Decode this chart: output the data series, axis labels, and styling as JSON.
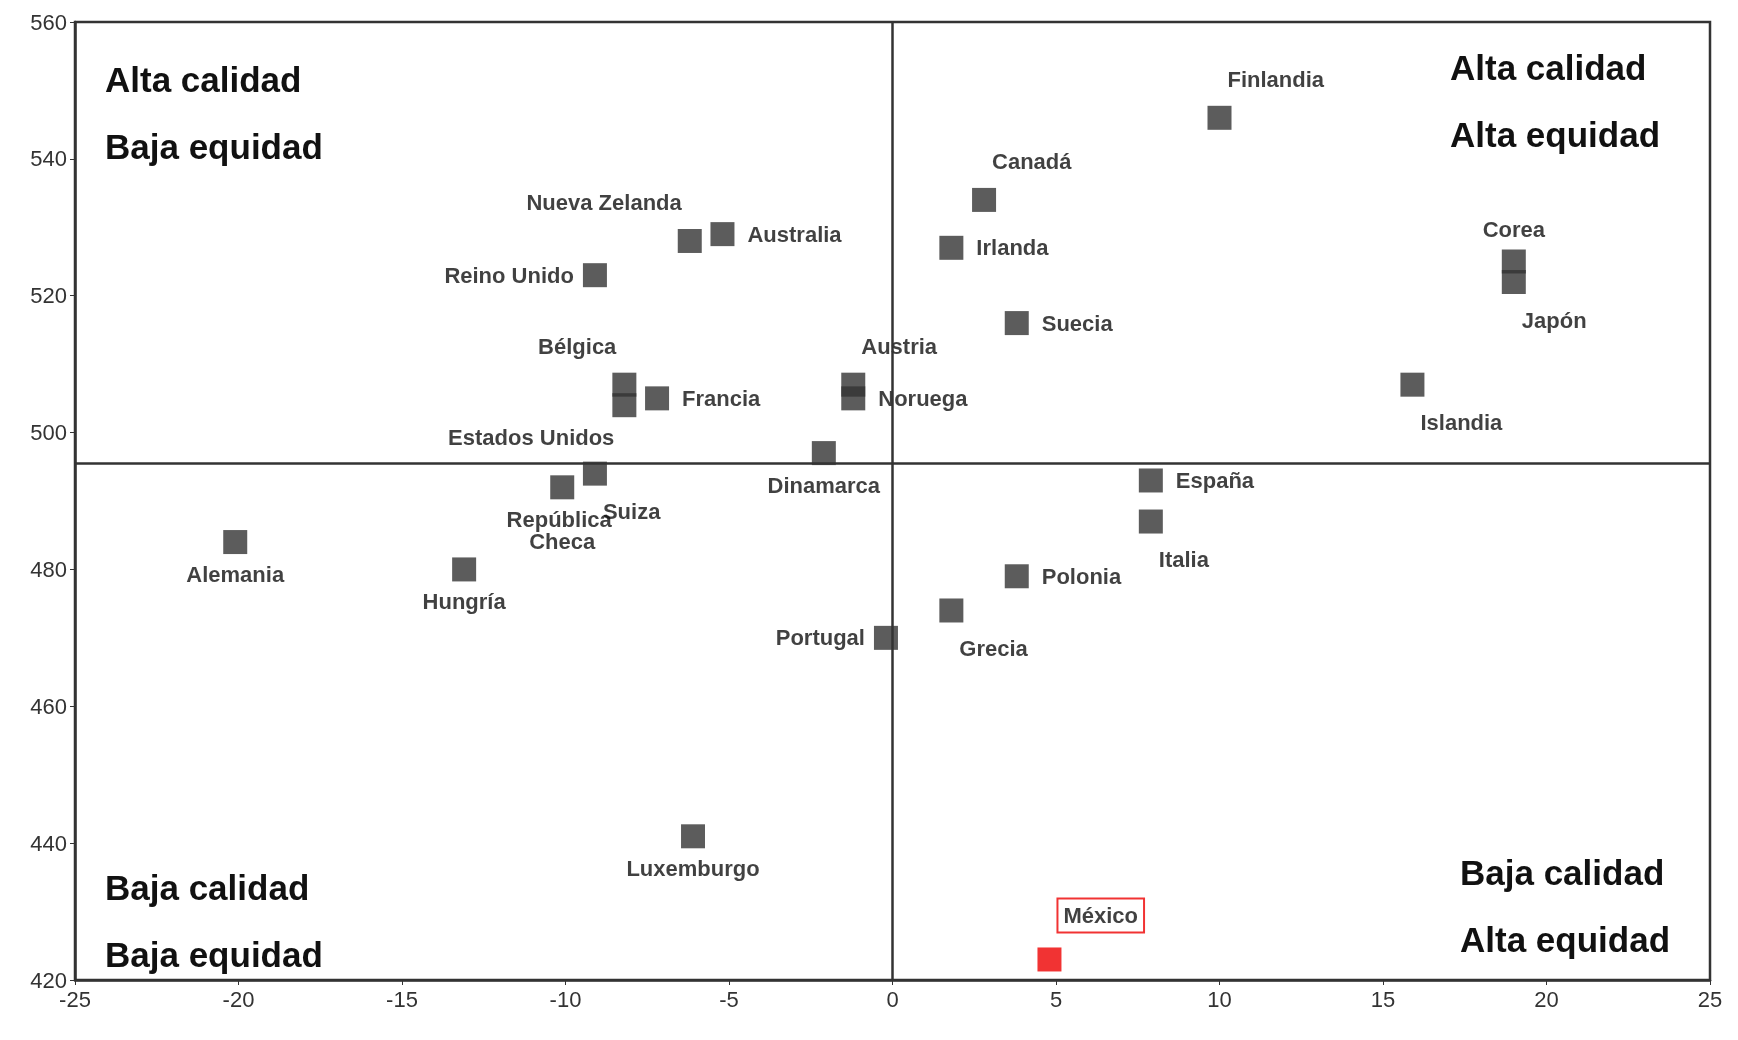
{
  "chart_data": {
    "type": "scatter",
    "marker": "square",
    "grid": false,
    "x": [
      10,
      2.8,
      1.8,
      3.8,
      19,
      19,
      15.9,
      -6.2,
      -5.2,
      -9.1,
      -8.2,
      -8.2,
      -7.2,
      -1.2,
      -1.2,
      -2.1,
      -9.1,
      -10.1,
      -20.1,
      -13.1,
      -0.2,
      1.8,
      3.8,
      7.9,
      7.9,
      -6.1,
      4.8
    ],
    "values": [
      546,
      534,
      527,
      516,
      525,
      522,
      507,
      528,
      529,
      523,
      507,
      504,
      505,
      507,
      505,
      497,
      494,
      492,
      484,
      480,
      470,
      474,
      479,
      493,
      487,
      441,
      423
    ],
    "colors": [
      "#333333",
      "#333333",
      "#333333",
      "#333333",
      "#333333",
      "#333333",
      "#333333",
      "#333333",
      "#333333",
      "#333333",
      "#333333",
      "#333333",
      "#333333",
      "#333333",
      "#333333",
      "#333333",
      "#333333",
      "#333333",
      "#333333",
      "#333333",
      "#333333",
      "#333333",
      "#333333",
      "#333333",
      "#333333",
      "#333333",
      "#ee0000"
    ],
    "value_labels": [
      "Finlandia",
      "Canadá",
      "Irlanda",
      "Suecia",
      "Corea",
      "Japón",
      "Islandia",
      "Nueva Zelanda",
      "Australia",
      "Reino Unido",
      "Bélgica",
      "Estados Unidos",
      "Francia",
      "Austria",
      "Noruega",
      "Dinamarca",
      "Suiza",
      "República Checa",
      "Alemania",
      "Hungría",
      "Portugal",
      "Grecia",
      "Polonia",
      "España",
      "Italia",
      "Luxemburgo",
      "México"
    ],
    "xlim": [
      -25,
      25
    ],
    "xticks": [
      -25,
      -20,
      -15,
      -10,
      -5,
      0,
      5,
      10,
      15,
      20,
      25
    ],
    "ylim": [
      420,
      560
    ],
    "yticks": [
      420,
      440,
      460,
      480,
      500,
      520,
      540,
      560
    ],
    "ref_lines": [
      {
        "axis": "x",
        "value": 0,
        "color": "#333333"
      },
      {
        "axis": "y",
        "value": 495.5,
        "color": "#333333"
      }
    ],
    "annotations": [
      "Alta calidad",
      "Baja equidad",
      "Alta calidad",
      "Alta equidad",
      "Baja calidad",
      "Baja equidad",
      "Baja calidad",
      "Alta equidad"
    ]
  }
}
